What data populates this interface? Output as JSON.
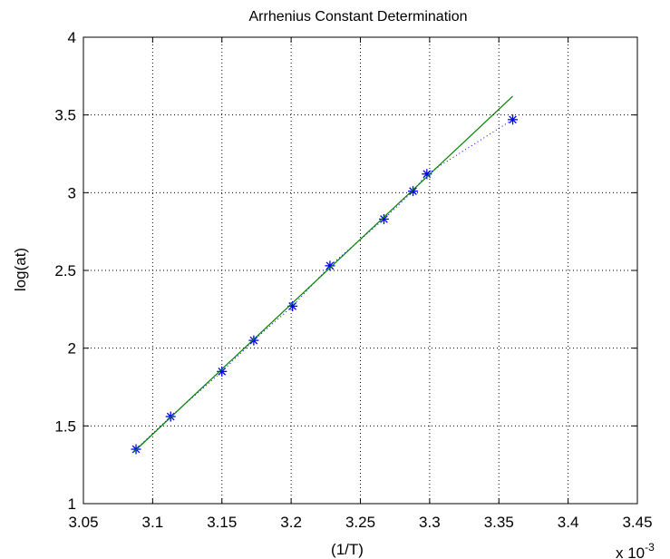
{
  "chart_data": {
    "type": "scatter",
    "title": "Arrhenius Constant Determination",
    "xlabel": "(1/T)",
    "ylabel": "log(at)",
    "x_multiplier_label": "x 10",
    "x_multiplier_exponent": "-3",
    "xlim": [
      3.05,
      3.45
    ],
    "ylim": [
      1,
      4
    ],
    "x_ticks": [
      3.05,
      3.1,
      3.15,
      3.2,
      3.25,
      3.3,
      3.35,
      3.4,
      3.45
    ],
    "x_tick_labels": [
      "3.05",
      "3.1",
      "3.15",
      "3.2",
      "3.25",
      "3.3",
      "3.35",
      "3.4",
      "3.45"
    ],
    "y_ticks": [
      1,
      1.5,
      2,
      2.5,
      3,
      3.5,
      4
    ],
    "y_tick_labels": [
      "1",
      "1.5",
      "2",
      "2.5",
      "3",
      "3.5",
      "4"
    ],
    "grid": true,
    "series": [
      {
        "style": "markers-with-dotted-line",
        "marker": "asterisk",
        "color": "#0000ff",
        "x": [
          3.088,
          3.113,
          3.15,
          3.173,
          3.201,
          3.228,
          3.267,
          3.288,
          3.298,
          3.36
        ],
        "y": [
          1.35,
          1.56,
          1.85,
          2.05,
          2.27,
          2.53,
          2.83,
          3.01,
          3.12,
          3.47
        ]
      },
      {
        "style": "solid-line",
        "color": "#008000",
        "x": [
          3.086,
          3.36
        ],
        "y": [
          1.33,
          3.62
        ]
      }
    ]
  }
}
